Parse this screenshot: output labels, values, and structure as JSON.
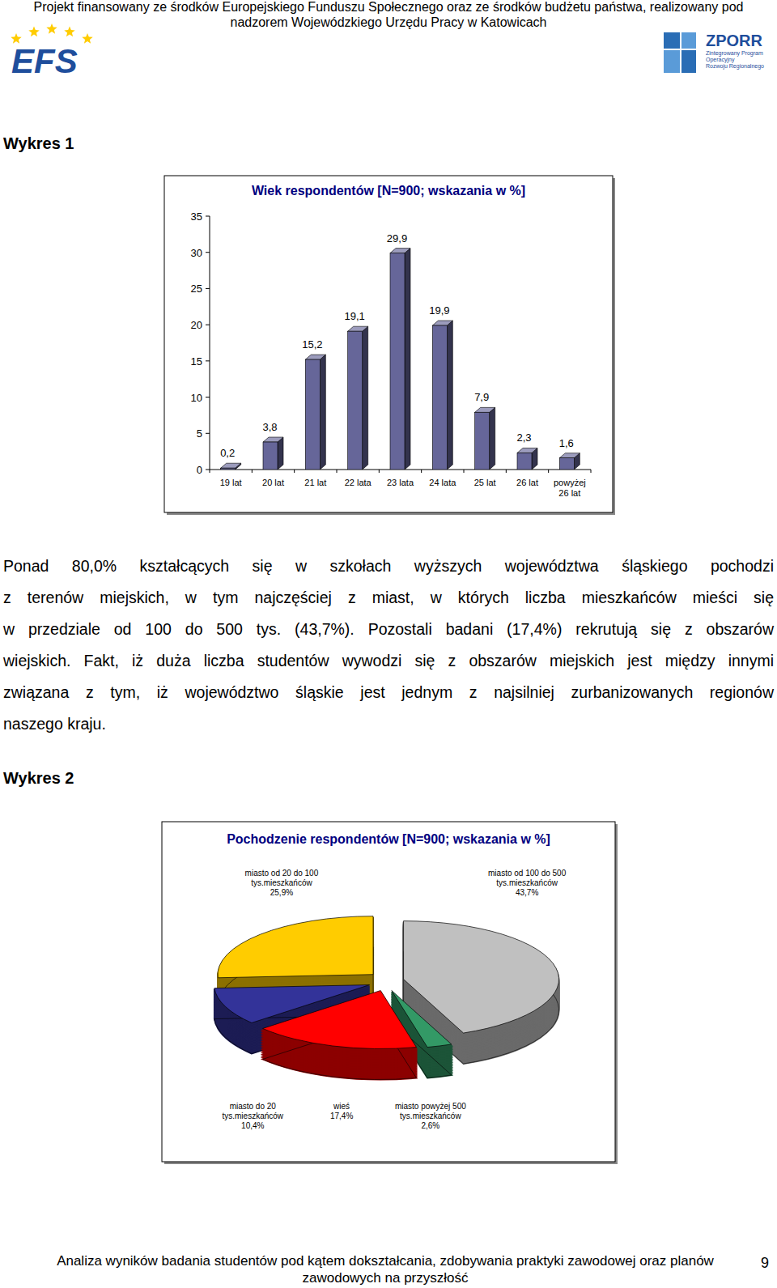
{
  "header": {
    "text": [
      "Projekt finansowany ze środków Europejskiego Funduszu Społecznego oraz ze środków budżetu państwa, realizowany pod",
      "nadzorem Wojewódzkiego Urzędu Pracy w Katowicach"
    ],
    "logo_left": "EFS",
    "logo_right": {
      "title": "ZPORR",
      "subtitle": [
        "Zintegrowany Program",
        "Operacyjny",
        "Rozwoju Regionalnego"
      ]
    }
  },
  "captions": [
    "Wykres 1",
    "Wykres 2"
  ],
  "paragraph": [
    "Ponad 80,0% kształcących się w szkołach wyższych województwa śląskiego pochodzi",
    "z terenów miejskich, w tym najczęściej z miast, w których liczba mieszkańców mieści się",
    "w przedziale od 100 do 500 tys. (43,7%). Pozostali badani (17,4%) rekrutują się z obszarów",
    "wiejskich. Fakt, iż duża liczba studentów wywodzi się z obszarów miejskich jest między innymi",
    "związana z tym, iż województwo śląskie jest jednym z najsilniej zurbanizowanych regionów",
    "naszego kraju."
  ],
  "footer": {
    "text": [
      "Analiza wyników badania studentów pod kątem dokształcania, zdobywania praktyki zawodowej oraz planów",
      "zawodowych na przyszłość"
    ],
    "page": 9
  },
  "chart_data": [
    {
      "type": "bar",
      "title": "Wiek respondentów [N=900; wskazania w %]",
      "categories": [
        "19 lat",
        "20 lat",
        "21 lat",
        "22 lata",
        "23 lata",
        "24 lata",
        "25 lat",
        "26 lat",
        "powyżej 26 lat"
      ],
      "values": [
        0.2,
        3.8,
        15.2,
        19.1,
        29.9,
        19.9,
        7.9,
        2.3,
        1.6
      ],
      "value_labels": [
        "0,2",
        "3,8",
        "15,2",
        "19,1",
        "29,9",
        "19,9",
        "7,9",
        "2,3",
        "1,6"
      ],
      "color": "#666699",
      "ylim": [
        0,
        35
      ],
      "yticks": [
        0,
        5,
        10,
        15,
        20,
        25,
        30,
        35
      ],
      "grid": false,
      "data_labels": true
    },
    {
      "type": "pie",
      "title": "Pochodzenie respondentów [N=900; wskazania w %]",
      "categories": [
        "miasto od 100 do 500 tys.mieszkańców",
        "miasto powyżej 500 tys.mieszkańców",
        "wieś",
        "miasto do 20 tys.mieszkańców",
        "miasto od 20 do 100 tys.mieszkańców"
      ],
      "values": [
        43.7,
        2.6,
        17.4,
        10.4,
        25.9
      ],
      "value_labels": [
        "43,7%",
        "2,6%",
        "17,4%",
        "10,4%",
        "25,9%"
      ],
      "colors": [
        "#c0c0c0",
        "#339966",
        "#ff0000",
        "#333399",
        "#ffcc00"
      ],
      "data_labels": true
    }
  ]
}
